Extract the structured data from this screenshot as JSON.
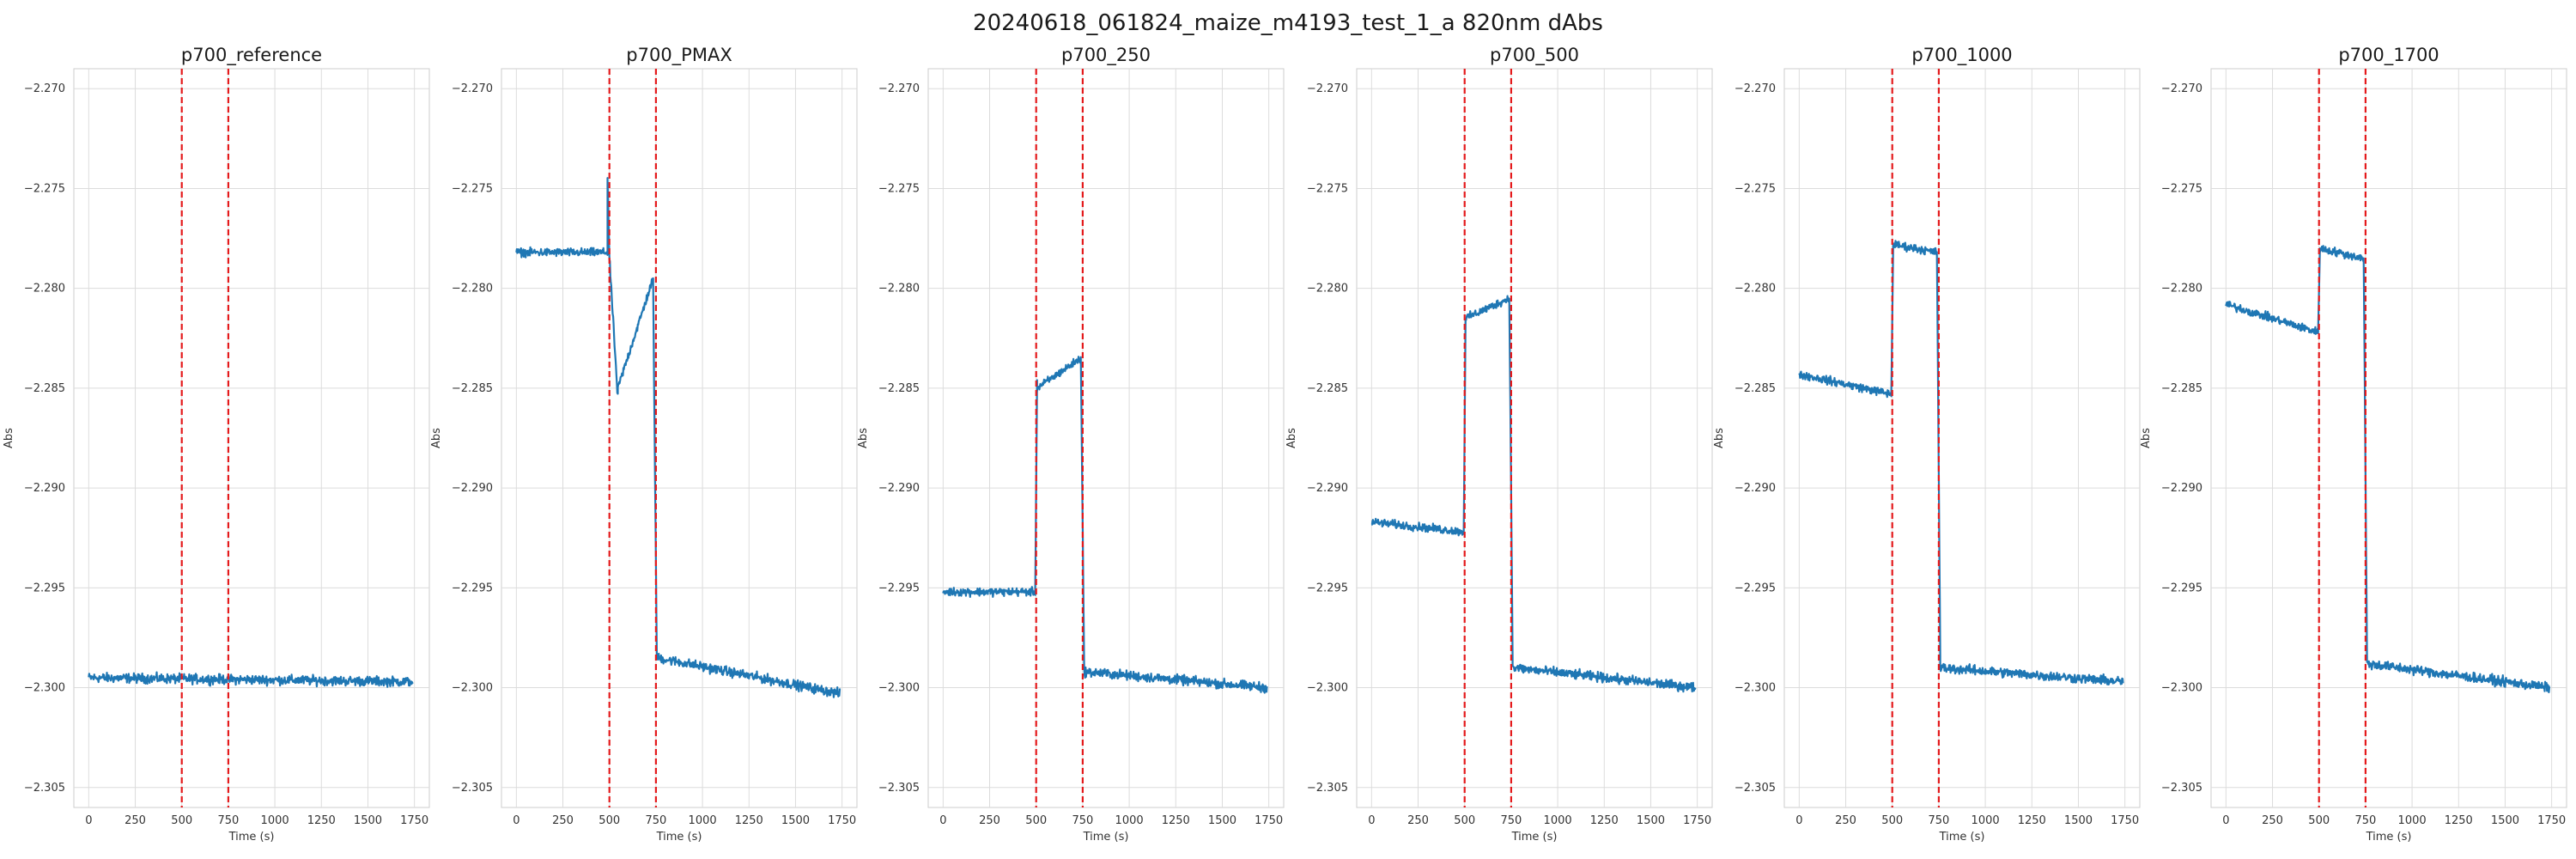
{
  "suptitle": "20240618_061824_maize_m4193_test_1_a 820nm dAbs",
  "colors": {
    "line": "#1f77b4",
    "marker": "#e41a1c",
    "grid": "#dcdcdc",
    "frame": "#cccccc"
  },
  "chart_data": [
    {
      "type": "line",
      "title": "p700_reference",
      "xlabel": "Time (s)",
      "ylabel": "Abs",
      "xlim": [
        -80,
        1830
      ],
      "ylim": [
        -2.306,
        -2.269
      ],
      "xticks": [
        0,
        250,
        500,
        750,
        1000,
        1250,
        1500,
        1750
      ],
      "yticks": [
        -2.27,
        -2.275,
        -2.28,
        -2.285,
        -2.29,
        -2.295,
        -2.3,
        -2.305
      ],
      "vlines": [
        500,
        750
      ],
      "grid": true,
      "series": [
        {
          "segments": [
            [
              0,
              1740,
              -2.2995,
              -2.2997,
              0.00035
            ]
          ]
        }
      ]
    },
    {
      "type": "line",
      "title": "p700_PMAX",
      "xlabel": "Time (s)",
      "ylabel": "Abs",
      "xlim": [
        -80,
        1830
      ],
      "ylim": [
        -2.306,
        -2.269
      ],
      "xticks": [
        0,
        250,
        500,
        750,
        1000,
        1250,
        1500,
        1750
      ],
      "yticks": [
        -2.27,
        -2.275,
        -2.28,
        -2.285,
        -2.29,
        -2.295,
        -2.3,
        -2.305
      ],
      "vlines": [
        500,
        750
      ],
      "grid": true,
      "series": [
        {
          "segments": [
            [
              0,
              490,
              -2.2782,
              -2.2782,
              0.0003
            ],
            [
              490,
              500,
              -2.2745,
              -2.2785,
              0.0002
            ],
            [
              500,
              545,
              -2.2785,
              -2.2855,
              0.0003
            ],
            [
              545,
              735,
              -2.285,
              -2.2795,
              0.0003
            ],
            [
              735,
              755,
              -2.28,
              -2.2985,
              0.0002
            ],
            [
              755,
              1740,
              -2.2985,
              -2.3003,
              0.00035
            ]
          ]
        }
      ]
    },
    {
      "type": "line",
      "title": "p700_250",
      "xlabel": "Time (s)",
      "ylabel": "Abs",
      "xlim": [
        -80,
        1830
      ],
      "ylim": [
        -2.306,
        -2.269
      ],
      "xticks": [
        0,
        250,
        500,
        750,
        1000,
        1250,
        1500,
        1750
      ],
      "yticks": [
        -2.27,
        -2.275,
        -2.28,
        -2.285,
        -2.29,
        -2.295,
        -2.3,
        -2.305
      ],
      "vlines": [
        500,
        750
      ],
      "grid": true,
      "series": [
        {
          "segments": [
            [
              0,
              495,
              -2.2952,
              -2.2952,
              0.0003
            ],
            [
              495,
              505,
              -2.2952,
              -2.2845,
              0.0002
            ],
            [
              505,
              740,
              -2.285,
              -2.2835,
              0.0003
            ],
            [
              740,
              758,
              -2.2835,
              -2.299,
              0.0002
            ],
            [
              758,
              1740,
              -2.2992,
              -2.3,
              0.00035
            ]
          ]
        }
      ]
    },
    {
      "type": "line",
      "title": "p700_500",
      "xlabel": "Time (s)",
      "ylabel": "Abs",
      "xlim": [
        -80,
        1830
      ],
      "ylim": [
        -2.306,
        -2.269
      ],
      "xticks": [
        0,
        250,
        500,
        750,
        1000,
        1250,
        1500,
        1750
      ],
      "yticks": [
        -2.27,
        -2.275,
        -2.28,
        -2.285,
        -2.29,
        -2.295,
        -2.3,
        -2.305
      ],
      "vlines": [
        500,
        750
      ],
      "grid": true,
      "series": [
        {
          "segments": [
            [
              0,
              495,
              -2.2917,
              -2.2922,
              0.0003
            ],
            [
              495,
              505,
              -2.2922,
              -2.2815,
              0.0002
            ],
            [
              505,
              740,
              -2.2815,
              -2.2805,
              0.0003
            ],
            [
              740,
              758,
              -2.2805,
              -2.2985,
              0.0002
            ],
            [
              758,
              1740,
              -2.299,
              -2.3,
              0.00035
            ]
          ]
        }
      ]
    },
    {
      "type": "line",
      "title": "p700_1000",
      "xlabel": "Time (s)",
      "ylabel": "Abs",
      "xlim": [
        -80,
        1830
      ],
      "ylim": [
        -2.306,
        -2.269
      ],
      "xticks": [
        0,
        250,
        500,
        750,
        1000,
        1250,
        1500,
        1750
      ],
      "yticks": [
        -2.27,
        -2.275,
        -2.28,
        -2.285,
        -2.29,
        -2.295,
        -2.3,
        -2.305
      ],
      "vlines": [
        500,
        750
      ],
      "grid": true,
      "series": [
        {
          "segments": [
            [
              0,
              495,
              -2.2843,
              -2.2853,
              0.0003
            ],
            [
              495,
              505,
              -2.2853,
              -2.2778,
              0.0002
            ],
            [
              505,
              740,
              -2.2778,
              -2.2782,
              0.0003
            ],
            [
              740,
              758,
              -2.2782,
              -2.2985,
              0.0002
            ],
            [
              758,
              1740,
              -2.299,
              -2.2997,
              0.00035
            ]
          ]
        }
      ]
    },
    {
      "type": "line",
      "title": "p700_1700",
      "xlabel": "Time (s)",
      "ylabel": "Abs",
      "xlim": [
        -80,
        1830
      ],
      "ylim": [
        -2.306,
        -2.269
      ],
      "xticks": [
        0,
        250,
        500,
        750,
        1000,
        1250,
        1500,
        1750
      ],
      "yticks": [
        -2.27,
        -2.275,
        -2.28,
        -2.285,
        -2.29,
        -2.295,
        -2.3,
        -2.305
      ],
      "vlines": [
        500,
        750
      ],
      "grid": true,
      "series": [
        {
          "segments": [
            [
              0,
              495,
              -2.2808,
              -2.2822,
              0.0003
            ],
            [
              495,
              505,
              -2.2822,
              -2.278,
              0.0002
            ],
            [
              505,
              740,
              -2.278,
              -2.2785,
              0.0003
            ],
            [
              740,
              758,
              -2.2785,
              -2.2985,
              0.0002
            ],
            [
              758,
              1740,
              -2.2988,
              -2.3,
              0.00035
            ]
          ]
        }
      ]
    }
  ]
}
